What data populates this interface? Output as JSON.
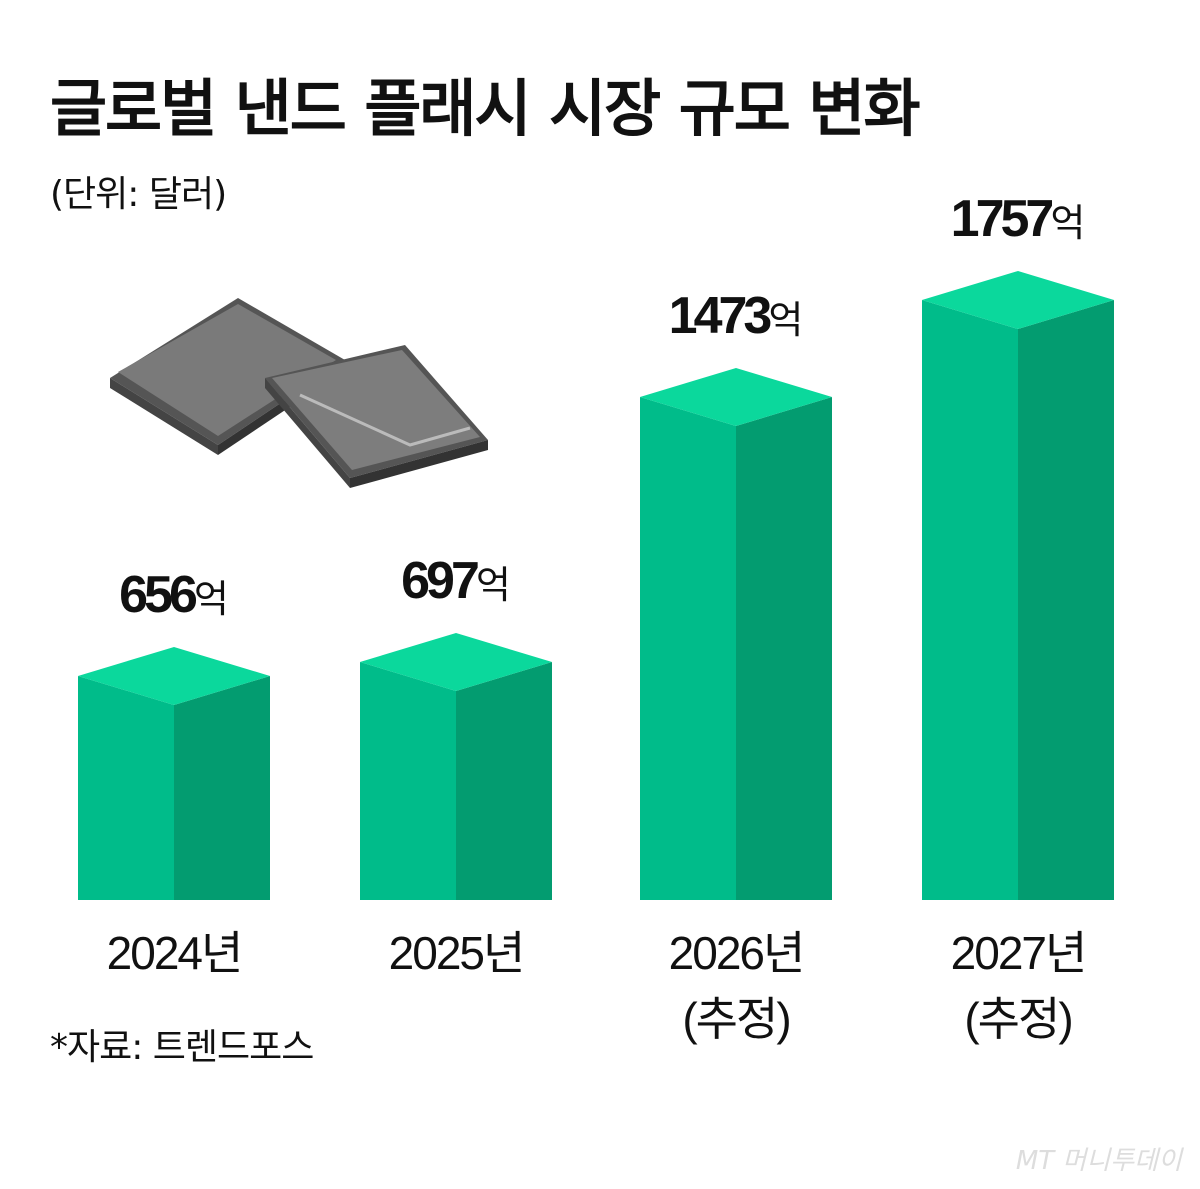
{
  "title": "글로벌 낸드 플래시 시장 규모 변화",
  "unit": "(단위: 달러)",
  "source": "*자료: 트렌드포스",
  "watermark": "MT 머니투데이",
  "colors": {
    "top": "#0BD89C",
    "front": "#00BC8A",
    "side": "#039C70"
  },
  "chart_data": {
    "type": "bar",
    "title": "글로벌 낸드 플래시 시장 규모 변화",
    "ylabel": "(단위: 달러)",
    "categories": [
      "2024년",
      "2025년",
      "2026년",
      "2027년"
    ],
    "category_notes": [
      "",
      "",
      "(추정)",
      "(추정)"
    ],
    "values": [
      656,
      697,
      1473,
      1757
    ],
    "value_labels": [
      "656",
      "697",
      "1473",
      "1757"
    ],
    "value_suffix": "억",
    "ylim": [
      0,
      1757
    ]
  }
}
